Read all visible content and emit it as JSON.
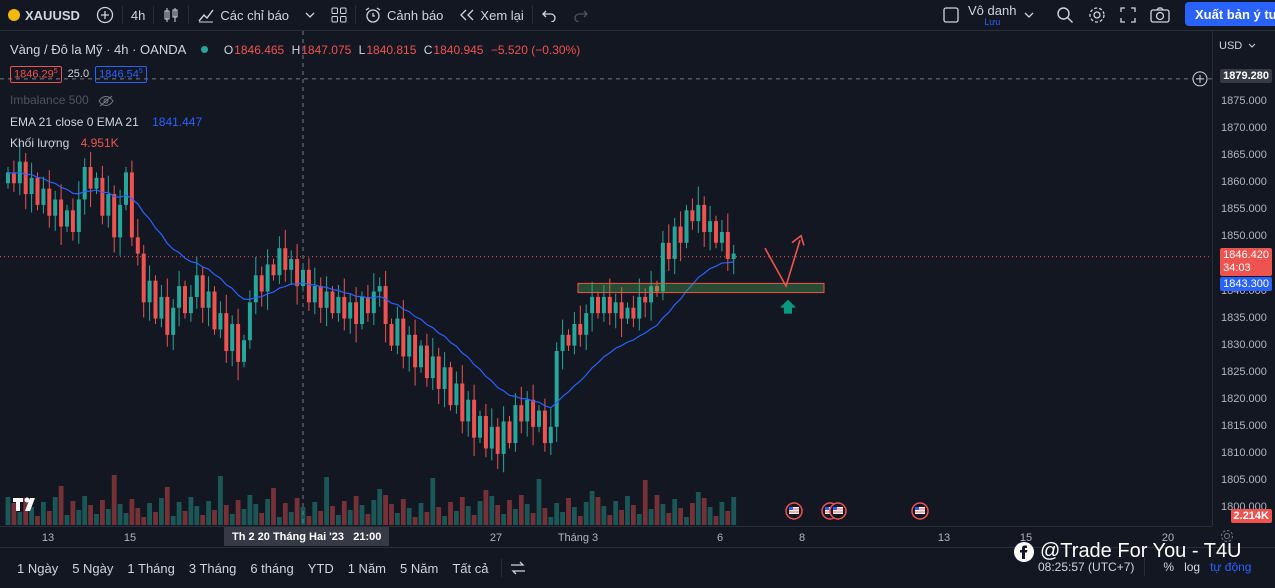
{
  "topbar": {
    "symbol": "XAUUSD",
    "interval": "4h",
    "indicators_label": "Các chỉ báo",
    "alerts_label": "Cảnh báo",
    "replay_label": "Xem lại",
    "user_name": "Vô danh",
    "user_sub": "Lưu",
    "export_label": "Xuất bản ý tưởng"
  },
  "legend": {
    "title": "Vàng / Đô la Mỹ · 4h · OANDA",
    "o_label": "O",
    "o": "1846.465",
    "h_label": "H",
    "h": "1847.075",
    "l_label": "L",
    "l": "1840.815",
    "c_label": "C",
    "c": "1840.945",
    "change": "−5.520 (−0.30%)",
    "sell_price": "1846.29",
    "sell_price_sup": "5",
    "spread": "25.0",
    "buy_price": "1846.54",
    "buy_price_sup": "5",
    "imbalance": "Imbalance 500",
    "ema_label": "EMA 21 close 0 EMA 21",
    "ema_value": "1841.447",
    "volume_label": "Khối lượng",
    "volume_value": "4.951K"
  },
  "price_axis": {
    "currency": "USD",
    "ticks": [
      "1875.000",
      "1870.000",
      "1865.000",
      "1860.000",
      "1855.000",
      "1850.000",
      "1840.000",
      "1835.000",
      "1830.000",
      "1825.000",
      "1820.000",
      "1815.000",
      "1810.000",
      "1805.000",
      "1800.000"
    ],
    "crosshair_price": "1879.280",
    "last_price": "1846.420",
    "countdown": "34:03",
    "ema_price": "1843.300",
    "volume_label": "2.214K"
  },
  "time_axis": {
    "labels": [
      "13",
      "15",
      "27",
      "Tháng 3",
      "6",
      "8",
      "13",
      "15",
      "20"
    ],
    "crosshair_time": "Th 2 20 Tháng Hai '23   21:00"
  },
  "bottombar": {
    "ranges": [
      "1 Ngày",
      "5 Ngày",
      "1 Tháng",
      "3 Tháng",
      "6 tháng",
      "YTD",
      "1 Năm",
      "5 Năm",
      "Tất cả"
    ],
    "time": "08:25:57 (UTC+7)",
    "percent": "%",
    "log": "log",
    "auto": "tự động"
  },
  "watermark": "@Trade For You - T4U",
  "colors": {
    "bg": "#131722",
    "up": "#26a69a",
    "down": "#ef5350",
    "ema": "#2962ff",
    "accent": "#2962ff"
  }
}
